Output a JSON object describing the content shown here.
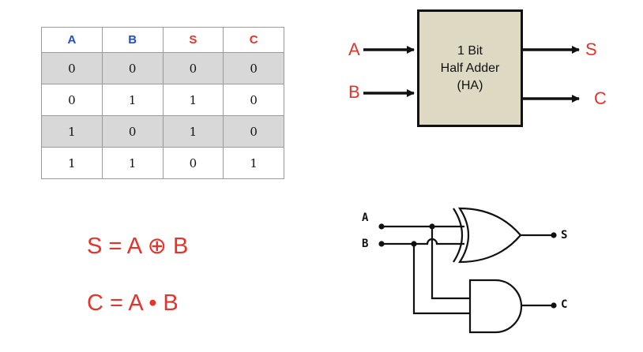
{
  "truth_table": {
    "headers": [
      {
        "text": "A",
        "color": "#1f4fd1"
      },
      {
        "text": "B",
        "color": "#1f4fd1"
      },
      {
        "text": "S",
        "color": "#e8332a"
      },
      {
        "text": "C",
        "color": "#e8332a"
      }
    ],
    "rows": [
      [
        "0",
        "0",
        "0",
        "0"
      ],
      [
        "0",
        "1",
        "1",
        "0"
      ],
      [
        "1",
        "0",
        "1",
        "0"
      ],
      [
        "1",
        "1",
        "0",
        "1"
      ]
    ]
  },
  "block": {
    "line1": "1 Bit",
    "line2": "Half Adder",
    "line3": "(HA)",
    "input_a": "A",
    "input_b": "B",
    "output_s": "S",
    "output_c": "C",
    "fill_color": "#ddd9c3"
  },
  "equations": {
    "sum": "S = A ⊕ B",
    "carry": "C = A • B",
    "color": "#e8332a"
  },
  "gates": {
    "input_a": "A",
    "input_b": "B",
    "output_s": "S",
    "output_c": "C",
    "xor_gate": "xor-gate-icon",
    "and_gate": "and-gate-icon"
  }
}
